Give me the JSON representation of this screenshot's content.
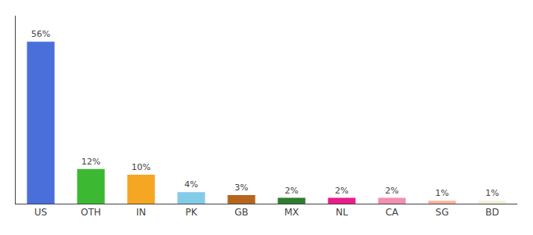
{
  "chart_data": {
    "type": "bar",
    "categories": [
      "US",
      "OTH",
      "IN",
      "PK",
      "GB",
      "MX",
      "NL",
      "CA",
      "SG",
      "BD"
    ],
    "values": [
      56,
      12,
      10,
      4,
      3,
      2,
      2,
      2,
      1,
      1
    ],
    "value_labels": [
      "56%",
      "12%",
      "10%",
      "4%",
      "3%",
      "2%",
      "2%",
      "2%",
      "1%",
      "1%"
    ],
    "data_labels": true,
    "colors": [
      "#4a6fdb",
      "#3db832",
      "#f5a623",
      "#82cce8",
      "#b5651d",
      "#2e7d32",
      "#e91e8c",
      "#f48fb1",
      "#ffb3a0",
      "#f5f0dc"
    ],
    "ylim": [
      0,
      65
    ],
    "tick_labels": "x",
    "grid": false
  }
}
